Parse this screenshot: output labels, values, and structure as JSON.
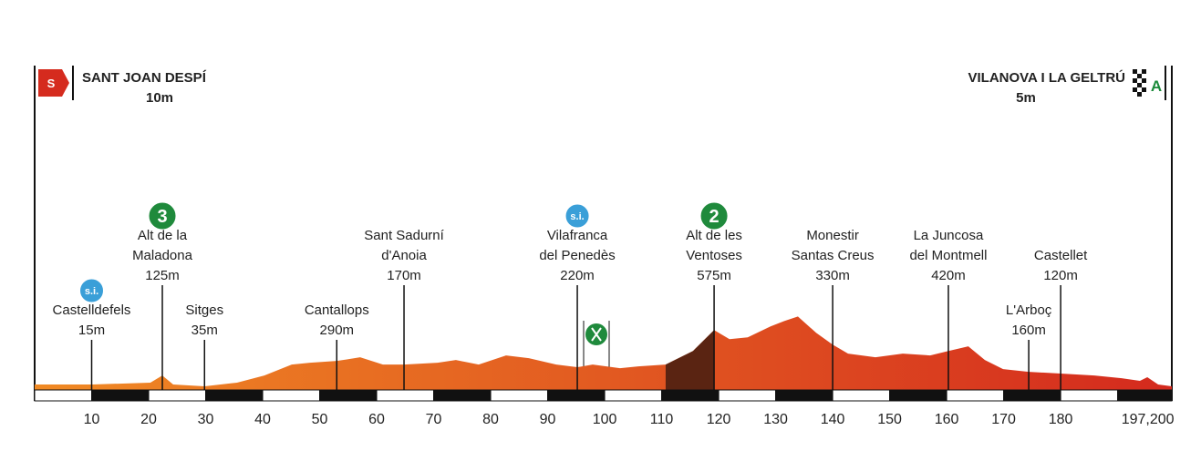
{
  "chart_data": {
    "type": "profile",
    "start": {
      "name": "SANT JOAN DESPÍ",
      "altitude": "10m",
      "badge": "S"
    },
    "finish": {
      "name": "VILANOVA I LA GELTRÚ",
      "altitude": "5m",
      "badge": "A"
    },
    "xlim": [
      0,
      199.5
    ],
    "ylim": [
      0,
      900
    ],
    "xticks": [
      10,
      20,
      30,
      40,
      50,
      60,
      70,
      80,
      90,
      100,
      110,
      120,
      130,
      140,
      150,
      160,
      170,
      180,
      {
        "value": 197.2,
        "label": "197,200"
      }
    ],
    "colors": [
      "#f08a24",
      "#d42a1e"
    ],
    "highlight": {
      "xrange": [
        110.7,
        119.2
      ],
      "color": "#5a2412"
    },
    "series": [
      {
        "x": [
          0,
          10.1,
          20.3,
          22.4,
          24.3,
          29.8,
          35.5,
          40.3,
          45.1,
          48.3,
          53,
          57.1,
          61.1,
          64.8,
          70.7,
          73.9,
          77.9,
          82.7,
          86.7,
          91.5,
          95.2,
          97.9,
          102.7,
          105.9,
          110.7,
          115.5,
          119.2,
          121.9,
          125.1,
          129.1,
          131.5,
          133.9,
          137.1,
          140,
          142.7,
          147.5,
          152.3,
          157.1,
          160.3,
          163.8,
          166.7,
          169.9,
          174.4,
          180,
          185.9,
          190.7,
          193.9,
          195.2,
          197.1,
          199.5
        ],
        "values": [
          52,
          52,
          70,
          139,
          52,
          35,
          70,
          139,
          244,
          261,
          278,
          313,
          244,
          244,
          261,
          287,
          244,
          331,
          305,
          244,
          218,
          244,
          209,
          226,
          244,
          374,
          575,
          487,
          505,
          609,
          661,
          705,
          548,
          435,
          348,
          313,
          348,
          331,
          374,
          418,
          287,
          200,
          174,
          157,
          139,
          113,
          87,
          122,
          52,
          35
        ]
      }
    ],
    "waypoints": [
      {
        "name": [
          "Castelldefels"
        ],
        "altitude": "15m",
        "km": 10,
        "badge": "s.i."
      },
      {
        "name": [
          "Alt de la",
          "Maladona"
        ],
        "altitude": "125m",
        "km": 22.4,
        "badge": "3"
      },
      {
        "name": [
          "Sitges"
        ],
        "altitude": "35m",
        "km": 29.8
      },
      {
        "name": [
          "Cantallops"
        ],
        "altitude": "290m",
        "km": 53
      },
      {
        "name": [
          "Sant Sadurní",
          "d'Anoia"
        ],
        "altitude": "170m",
        "km": 64.8
      },
      {
        "name": [
          "Vilafranca",
          "del Penedès"
        ],
        "altitude": "220m",
        "km": 95.2,
        "badge": "s.i."
      },
      {
        "name": [
          "Alt de les",
          "Ventoses"
        ],
        "altitude": "575m",
        "km": 119.2,
        "badge": "2"
      },
      {
        "name": [
          "Monestir",
          "Santas Creus"
        ],
        "altitude": "330m",
        "km": 140
      },
      {
        "name": [
          "La Juncosa",
          "del Montmell"
        ],
        "altitude": "420m",
        "km": 160.3
      },
      {
        "name": [
          "L'Arboç"
        ],
        "altitude": "160m",
        "km": 174.4
      },
      {
        "name": [
          "Castellet"
        ],
        "altitude": "120m",
        "km": 180
      }
    ]
  }
}
